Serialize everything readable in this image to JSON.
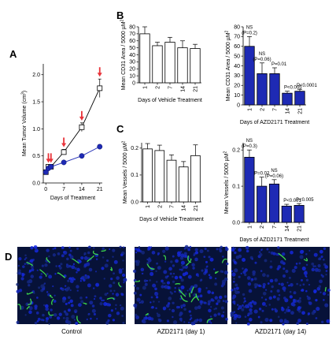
{
  "panels": {
    "A": "A",
    "B": "B",
    "C": "C",
    "D": "D"
  },
  "colors": {
    "blue": "#1e2ab4",
    "red_arrow": "#e8333a",
    "micro_bg": "#071238"
  },
  "chart_data": [
    {
      "id": "A",
      "type": "line",
      "title": "",
      "xlabel": "Days of Treatment",
      "ylabel": "Mean Tumor Volume (cm³)",
      "xlim": [
        -1,
        22
      ],
      "ylim": [
        0,
        2.2
      ],
      "xticks": [
        0,
        7,
        14,
        21
      ],
      "yticks": [
        0.0,
        0.5,
        1.0,
        1.5,
        2.0
      ],
      "series": [
        {
          "marker": "open-square",
          "x": [
            0,
            1,
            2,
            7,
            14,
            21
          ],
          "y": [
            0.2,
            0.3,
            0.3,
            0.57,
            1.03,
            1.75
          ],
          "err": [
            0.02,
            0.03,
            0.03,
            0.05,
            0.08,
            0.17
          ]
        },
        {
          "marker": "filled-circle",
          "x": [
            0,
            1,
            2,
            7,
            14,
            21
          ],
          "y": [
            0.2,
            0.27,
            0.3,
            0.38,
            0.5,
            0.67
          ],
          "err": [
            0.02,
            0.02,
            0.02,
            0.03,
            0.03,
            0.04
          ]
        }
      ],
      "arrows_at_days": [
        1,
        2,
        7,
        14,
        21
      ]
    },
    {
      "id": "B-vehicle",
      "type": "bar",
      "xlabel": "Days of Vehicle Treatment",
      "ylabel": "Mean CD31 Area / 5000 µM²",
      "categories": [
        "1",
        "2",
        "7",
        "14",
        "21"
      ],
      "values": [
        70,
        53,
        58,
        50,
        49
      ],
      "err": [
        10,
        5,
        7,
        10,
        6
      ],
      "ylim": [
        0,
        80
      ],
      "yticks": [
        0,
        10,
        20,
        30,
        40,
        50,
        60,
        70,
        80
      ],
      "fill": "open",
      "annotations": []
    },
    {
      "id": "B-azd",
      "type": "bar",
      "xlabel": "Days of AZD2171 Treatment",
      "ylabel": "Mean CD31 Area / 5000 µM²",
      "categories": [
        "1",
        "2",
        "7",
        "14",
        "21"
      ],
      "values": [
        60,
        32,
        32,
        12,
        14
      ],
      "err": [
        10,
        11,
        6,
        2,
        2
      ],
      "ylim": [
        0,
        80
      ],
      "yticks": [
        0,
        10,
        20,
        30,
        40,
        50,
        60,
        70,
        80
      ],
      "fill": "blue",
      "annotations": [
        {
          "cat": 0,
          "lines": [
            "NS",
            "(P=0.2)"
          ]
        },
        {
          "cat": 1,
          "lines": [
            "NS",
            "(P=0.06)"
          ]
        },
        {
          "cat": 2,
          "lines": [
            "P=0.01"
          ]
        },
        {
          "cat": 3,
          "lines": [
            "P<0.005"
          ]
        },
        {
          "cat": 4,
          "lines": [
            "P<0.0001"
          ]
        }
      ]
    },
    {
      "id": "C-vehicle",
      "type": "bar",
      "xlabel": "Days of Vehicle Treatment",
      "ylabel": "Mean Vessels / 5000 µM²",
      "categories": [
        "1",
        "2",
        "7",
        "14",
        "21"
      ],
      "values": [
        0.197,
        0.191,
        0.155,
        0.13,
        0.172
      ],
      "err": [
        0.02,
        0.02,
        0.02,
        0.02,
        0.04
      ],
      "ylim": [
        0,
        0.22
      ],
      "yticks": [
        0.0,
        0.1,
        0.2
      ],
      "fill": "open",
      "annotations": []
    },
    {
      "id": "C-azd",
      "type": "bar",
      "xlabel": "Days of AZD2171 Treatment",
      "ylabel": "Mean Vessels / 5000 µM²",
      "categories": [
        "1",
        "2",
        "7",
        "14",
        "21"
      ],
      "values": [
        0.18,
        0.1,
        0.106,
        0.045,
        0.047
      ],
      "err": [
        0.02,
        0.025,
        0.012,
        0.005,
        0.005
      ],
      "ylim": [
        0,
        0.22
      ],
      "yticks": [
        0.0,
        0.1,
        0.2
      ],
      "fill": "blue",
      "annotations": [
        {
          "cat": 0,
          "lines": [
            "NS",
            "(P=0.3)"
          ]
        },
        {
          "cat": 1,
          "lines": [
            "P=0.02"
          ]
        },
        {
          "cat": 2,
          "lines": [
            "NS",
            "(P=0.06)"
          ]
        },
        {
          "cat": 3,
          "lines": [
            "P<0.001"
          ]
        },
        {
          "cat": 4,
          "lines": [
            "P<0.005"
          ]
        }
      ]
    }
  ],
  "micrographs": [
    {
      "caption": "Control",
      "vessel_density": 20
    },
    {
      "caption": "AZD2171 (day 1)",
      "vessel_density": 16
    },
    {
      "caption": "AZD2171 (day 14)",
      "vessel_density": 3
    }
  ]
}
